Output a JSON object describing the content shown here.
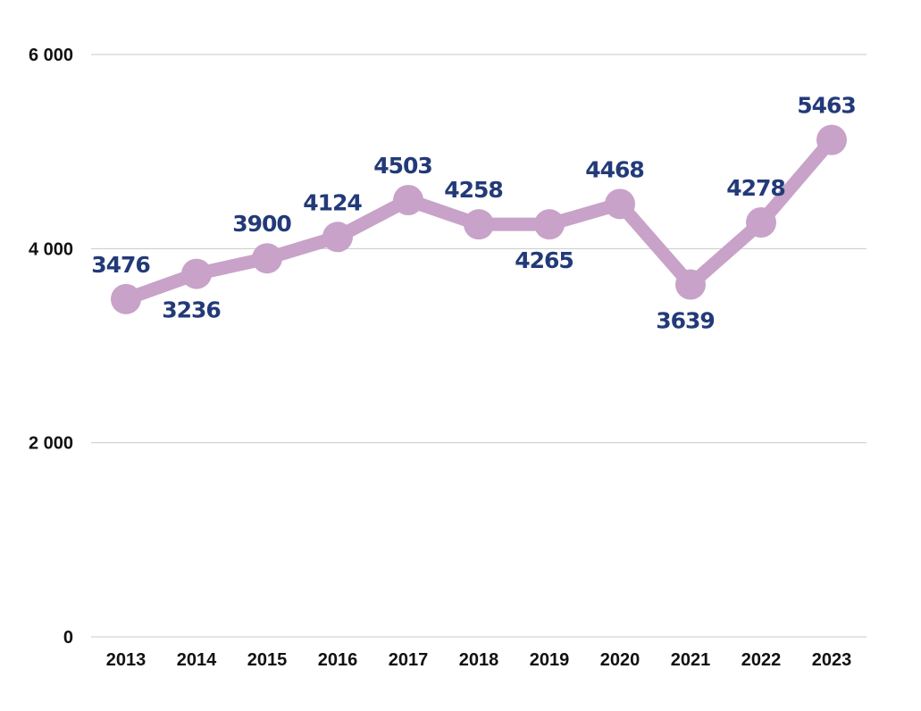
{
  "chart_data": {
    "type": "line",
    "title": "",
    "xlabel": "",
    "ylabel": "",
    "x": [
      "2013",
      "2014",
      "2015",
      "2016",
      "2017",
      "2018",
      "2019",
      "2020",
      "2021",
      "2022",
      "2023"
    ],
    "series": [
      {
        "values": [
          3476,
          3236,
          3900,
          4124,
          4503,
          4258,
          4265,
          4468,
          3639,
          4278,
          5463
        ],
        "point_values": [
          3480,
          3740,
          3900,
          4120,
          4500,
          4250,
          4250,
          4460,
          3630,
          4270,
          5120
        ],
        "color": "#c8a2c8"
      }
    ],
    "data_labels": [
      "3476",
      "3236",
      "3900",
      "4124",
      "4503",
      "4258",
      "4265",
      "4468",
      "3639",
      "4278",
      "5463"
    ],
    "label_positions": [
      "above",
      "below",
      "above",
      "above",
      "above",
      "above",
      "below",
      "above",
      "below",
      "above",
      "above"
    ],
    "ylim": [
      0,
      6000
    ],
    "yticks": [
      0,
      2000,
      4000,
      6000
    ],
    "ytick_labels": [
      "0",
      "2 000",
      "4 000",
      "6 000"
    ],
    "grid": true,
    "legend": "none",
    "colors": {
      "line": "#c8a2c8",
      "label": "#233a79",
      "grid": "#c9c9c9",
      "axis_text": "#111111"
    }
  }
}
